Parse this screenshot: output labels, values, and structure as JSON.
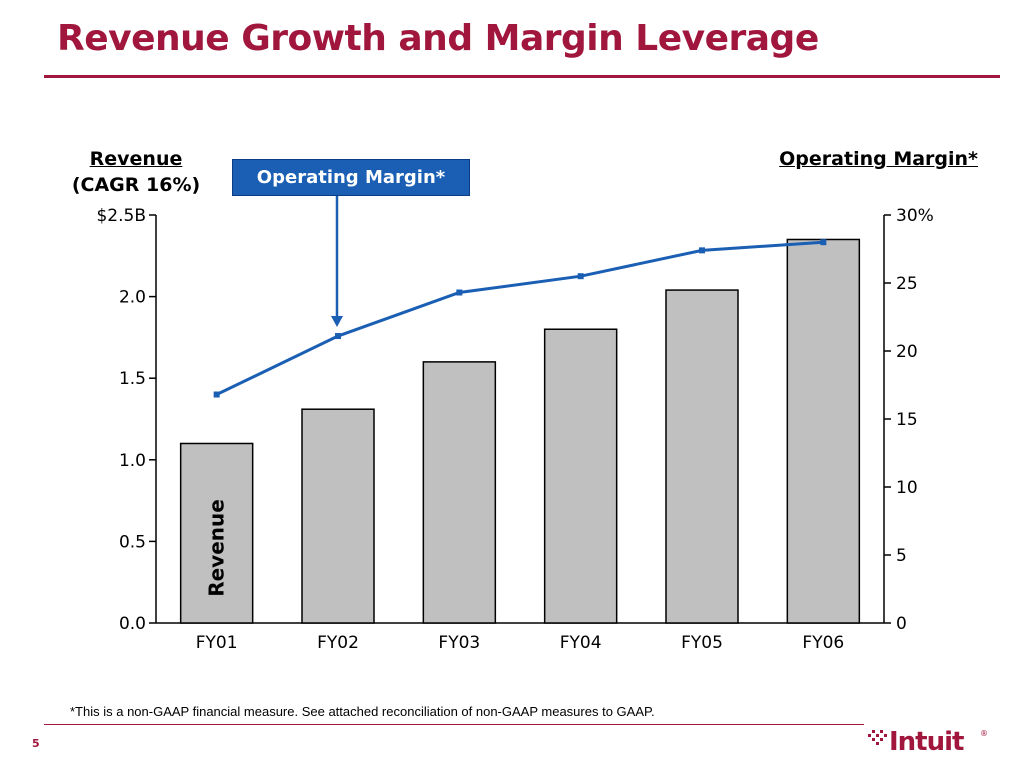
{
  "slide": {
    "title": "Revenue Growth and Margin Leverage",
    "left_axis_title_line1": "Revenue",
    "left_axis_title_line2": "(CAGR 16%)",
    "right_axis_title": "Operating Margin*",
    "callout_label": "Operating Margin*",
    "bar_label": "Revenue",
    "footnote": "*This is a non-GAAP financial measure. See attached reconciliation of non-GAAP measures to GAAP.",
    "page_number": "5",
    "logo_text": "Intuit"
  },
  "colors": {
    "title": "#a0163c",
    "bar_fill": "#c0c0c0",
    "bar_stroke": "#000000",
    "line": "#1a5fb4",
    "callout_bg": "#1a5fb4"
  },
  "chart_data": {
    "type": "bar",
    "categories": [
      "FY01",
      "FY02",
      "FY03",
      "FY04",
      "FY05",
      "FY06"
    ],
    "series": [
      {
        "name": "Revenue",
        "type": "bar",
        "axis": "left",
        "values": [
          1.1,
          1.31,
          1.6,
          1.8,
          2.04,
          2.35
        ]
      },
      {
        "name": "Operating Margin*",
        "type": "line",
        "axis": "right",
        "values": [
          16.8,
          21.1,
          24.3,
          25.5,
          27.4,
          28.0
        ]
      }
    ],
    "left_axis": {
      "ylim": [
        0,
        2.5
      ],
      "ticks": [
        0,
        0.5,
        1.0,
        1.5,
        2.0,
        2.5
      ],
      "tick_labels": [
        "0.0",
        "0.5",
        "1.0",
        "1.5",
        "2.0",
        "$2.5B"
      ]
    },
    "right_axis": {
      "ylim": [
        0,
        30
      ],
      "ticks": [
        0,
        5,
        10,
        15,
        20,
        25,
        30
      ],
      "tick_labels": [
        "0",
        "5",
        "10",
        "15",
        "20",
        "25",
        "30%"
      ]
    },
    "grid": false,
    "annotation": {
      "text": "Operating Margin*",
      "points_to": "FY02"
    }
  }
}
